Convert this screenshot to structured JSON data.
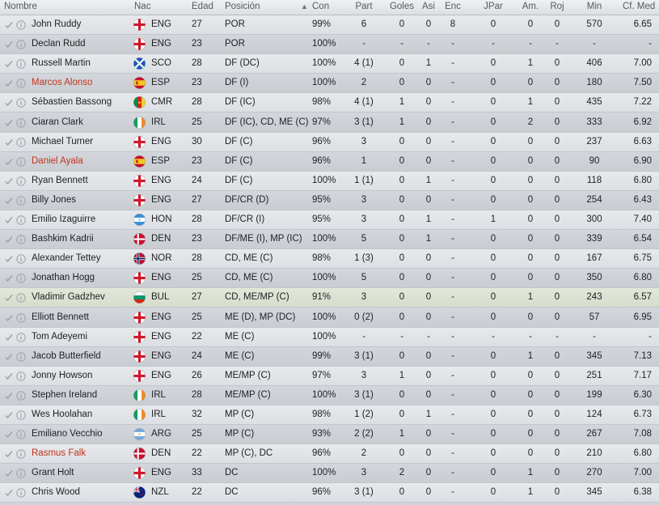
{
  "header": {
    "nombre": "Nombre",
    "nac": "Nac",
    "edad": "Edad",
    "posicion": "Posición",
    "sort_arrow": "▲",
    "con": "Con",
    "part": "Part",
    "goles": "Goles",
    "asi": "Asi",
    "enc": "Enc",
    "jpar": "JPar",
    "am": "Am.",
    "roj": "Roj",
    "min": "Min",
    "cfmed": "Cf. Med"
  },
  "rows": [
    {
      "name": "John Ruddy",
      "nat": "ENG",
      "flag": "eng",
      "age": "27",
      "pos": "POR",
      "con": "99%",
      "part": "6",
      "goles": "0",
      "asi": "0",
      "enc": "8",
      "jpar": "0",
      "am": "0",
      "roj": "0",
      "min": "570",
      "cf": "6.65",
      "red": false
    },
    {
      "name": "Declan Rudd",
      "nat": "ENG",
      "flag": "eng",
      "age": "23",
      "pos": "POR",
      "con": "100%",
      "part": "-",
      "goles": "-",
      "asi": "-",
      "enc": "-",
      "jpar": "-",
      "am": "-",
      "roj": "-",
      "min": "-",
      "cf": "-",
      "red": false
    },
    {
      "name": "Russell Martin",
      "nat": "SCO",
      "flag": "sco",
      "age": "28",
      "pos": "DF (DC)",
      "con": "100%",
      "part": "4 (1)",
      "goles": "0",
      "asi": "1",
      "enc": "-",
      "jpar": "0",
      "am": "1",
      "roj": "0",
      "min": "406",
      "cf": "7.00",
      "red": false
    },
    {
      "name": "Marcos Alonso",
      "nat": "ESP",
      "flag": "esp",
      "age": "23",
      "pos": "DF (I)",
      "con": "100%",
      "part": "2",
      "goles": "0",
      "asi": "0",
      "enc": "-",
      "jpar": "0",
      "am": "0",
      "roj": "0",
      "min": "180",
      "cf": "7.50",
      "red": true
    },
    {
      "name": "Sébastien Bassong",
      "nat": "CMR",
      "flag": "cmr",
      "age": "28",
      "pos": "DF (IC)",
      "con": "98%",
      "part": "4 (1)",
      "goles": "1",
      "asi": "0",
      "enc": "-",
      "jpar": "0",
      "am": "1",
      "roj": "0",
      "min": "435",
      "cf": "7.22",
      "red": false
    },
    {
      "name": "Ciaran Clark",
      "nat": "IRL",
      "flag": "irl",
      "age": "25",
      "pos": "DF (IC), CD, ME (C)",
      "con": "97%",
      "part": "3 (1)",
      "goles": "1",
      "asi": "0",
      "enc": "-",
      "jpar": "0",
      "am": "2",
      "roj": "0",
      "min": "333",
      "cf": "6.92",
      "red": false
    },
    {
      "name": "Michael Turner",
      "nat": "ENG",
      "flag": "eng",
      "age": "30",
      "pos": "DF (C)",
      "con": "96%",
      "part": "3",
      "goles": "0",
      "asi": "0",
      "enc": "-",
      "jpar": "0",
      "am": "0",
      "roj": "0",
      "min": "237",
      "cf": "6.63",
      "red": false
    },
    {
      "name": "Daniel Ayala",
      "nat": "ESP",
      "flag": "esp",
      "age": "23",
      "pos": "DF (C)",
      "con": "96%",
      "part": "1",
      "goles": "0",
      "asi": "0",
      "enc": "-",
      "jpar": "0",
      "am": "0",
      "roj": "0",
      "min": "90",
      "cf": "6.90",
      "red": true
    },
    {
      "name": "Ryan Bennett",
      "nat": "ENG",
      "flag": "eng",
      "age": "24",
      "pos": "DF (C)",
      "con": "100%",
      "part": "1 (1)",
      "goles": "0",
      "asi": "1",
      "enc": "-",
      "jpar": "0",
      "am": "0",
      "roj": "0",
      "min": "118",
      "cf": "6.80",
      "red": false
    },
    {
      "name": "Billy Jones",
      "nat": "ENG",
      "flag": "eng",
      "age": "27",
      "pos": "DF/CR (D)",
      "con": "95%",
      "part": "3",
      "goles": "0",
      "asi": "0",
      "enc": "-",
      "jpar": "0",
      "am": "0",
      "roj": "0",
      "min": "254",
      "cf": "6.43",
      "red": false
    },
    {
      "name": "Emilio Izaguirre",
      "nat": "HON",
      "flag": "hon",
      "age": "28",
      "pos": "DF/CR (I)",
      "con": "95%",
      "part": "3",
      "goles": "0",
      "asi": "1",
      "enc": "-",
      "jpar": "1",
      "am": "0",
      "roj": "0",
      "min": "300",
      "cf": "7.40",
      "red": false
    },
    {
      "name": "Bashkim Kadrii",
      "nat": "DEN",
      "flag": "den",
      "age": "23",
      "pos": "DF/ME (I), MP (IC)",
      "con": "100%",
      "part": "5",
      "goles": "0",
      "asi": "1",
      "enc": "-",
      "jpar": "0",
      "am": "0",
      "roj": "0",
      "min": "339",
      "cf": "6.54",
      "red": false
    },
    {
      "name": "Alexander Tettey",
      "nat": "NOR",
      "flag": "nor",
      "age": "28",
      "pos": "CD, ME (C)",
      "con": "98%",
      "part": "1 (3)",
      "goles": "0",
      "asi": "0",
      "enc": "-",
      "jpar": "0",
      "am": "0",
      "roj": "0",
      "min": "167",
      "cf": "6.75",
      "red": false
    },
    {
      "name": "Jonathan Hogg",
      "nat": "ENG",
      "flag": "eng",
      "age": "25",
      "pos": "CD, ME (C)",
      "con": "100%",
      "part": "5",
      "goles": "0",
      "asi": "0",
      "enc": "-",
      "jpar": "0",
      "am": "0",
      "roj": "0",
      "min": "350",
      "cf": "6.80",
      "red": false
    },
    {
      "name": "Vladimir Gadzhev",
      "nat": "BUL",
      "flag": "bul",
      "age": "27",
      "pos": "CD, ME/MP (C)",
      "con": "91%",
      "part": "3",
      "goles": "0",
      "asi": "0",
      "enc": "-",
      "jpar": "0",
      "am": "1",
      "roj": "0",
      "min": "243",
      "cf": "6.57",
      "red": false,
      "hl": true
    },
    {
      "name": "Elliott Bennett",
      "nat": "ENG",
      "flag": "eng",
      "age": "25",
      "pos": "ME (D), MP (DC)",
      "con": "100%",
      "part": "0 (2)",
      "goles": "0",
      "asi": "0",
      "enc": "-",
      "jpar": "0",
      "am": "0",
      "roj": "0",
      "min": "57",
      "cf": "6.95",
      "red": false
    },
    {
      "name": "Tom Adeyemi",
      "nat": "ENG",
      "flag": "eng",
      "age": "22",
      "pos": "ME (C)",
      "con": "100%",
      "part": "-",
      "goles": "-",
      "asi": "-",
      "enc": "-",
      "jpar": "-",
      "am": "-",
      "roj": "-",
      "min": "-",
      "cf": "-",
      "red": false
    },
    {
      "name": "Jacob Butterfield",
      "nat": "ENG",
      "flag": "eng",
      "age": "24",
      "pos": "ME (C)",
      "con": "99%",
      "part": "3 (1)",
      "goles": "0",
      "asi": "0",
      "enc": "-",
      "jpar": "0",
      "am": "1",
      "roj": "0",
      "min": "345",
      "cf": "7.13",
      "red": false
    },
    {
      "name": "Jonny Howson",
      "nat": "ENG",
      "flag": "eng",
      "age": "26",
      "pos": "ME/MP (C)",
      "con": "97%",
      "part": "3",
      "goles": "1",
      "asi": "0",
      "enc": "-",
      "jpar": "0",
      "am": "0",
      "roj": "0",
      "min": "251",
      "cf": "7.17",
      "red": false
    },
    {
      "name": "Stephen Ireland",
      "nat": "IRL",
      "flag": "irl",
      "age": "28",
      "pos": "ME/MP (C)",
      "con": "100%",
      "part": "3 (1)",
      "goles": "0",
      "asi": "0",
      "enc": "-",
      "jpar": "0",
      "am": "0",
      "roj": "0",
      "min": "199",
      "cf": "6.30",
      "red": false
    },
    {
      "name": "Wes Hoolahan",
      "nat": "IRL",
      "flag": "irl",
      "age": "32",
      "pos": "MP (C)",
      "con": "98%",
      "part": "1 (2)",
      "goles": "0",
      "asi": "1",
      "enc": "-",
      "jpar": "0",
      "am": "0",
      "roj": "0",
      "min": "124",
      "cf": "6.73",
      "red": false
    },
    {
      "name": "Emiliano Vecchio",
      "nat": "ARG",
      "flag": "arg",
      "age": "25",
      "pos": "MP (C)",
      "con": "93%",
      "part": "2 (2)",
      "goles": "1",
      "asi": "0",
      "enc": "-",
      "jpar": "0",
      "am": "0",
      "roj": "0",
      "min": "267",
      "cf": "7.08",
      "red": false
    },
    {
      "name": "Rasmus Falk",
      "nat": "DEN",
      "flag": "den",
      "age": "22",
      "pos": "MP (C), DC",
      "con": "96%",
      "part": "2",
      "goles": "0",
      "asi": "0",
      "enc": "-",
      "jpar": "0",
      "am": "0",
      "roj": "0",
      "min": "210",
      "cf": "6.80",
      "red": true
    },
    {
      "name": "Grant Holt",
      "nat": "ENG",
      "flag": "eng",
      "age": "33",
      "pos": "DC",
      "con": "100%",
      "part": "3",
      "goles": "2",
      "asi": "0",
      "enc": "-",
      "jpar": "0",
      "am": "1",
      "roj": "0",
      "min": "270",
      "cf": "7.00",
      "red": false
    },
    {
      "name": "Chris Wood",
      "nat": "NZL",
      "flag": "nzl",
      "age": "22",
      "pos": "DC",
      "con": "96%",
      "part": "3 (1)",
      "goles": "0",
      "asi": "0",
      "enc": "-",
      "jpar": "0",
      "am": "1",
      "roj": "0",
      "min": "345",
      "cf": "6.38",
      "red": false
    }
  ]
}
